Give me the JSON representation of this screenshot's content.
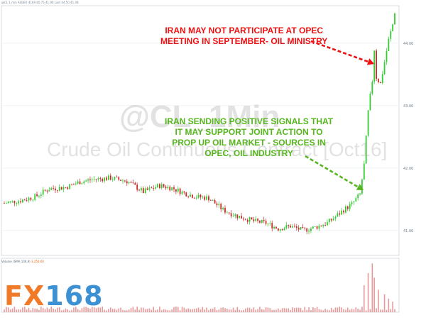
{
  "header": {
    "text": "@CL 1 min ASDEX 4169 40.75 41.90 Last 44.50 41.48"
  },
  "watermark": {
    "symbol": "@CL_1Min",
    "name": "Crude Oil Continuous Contract [Oct16]"
  },
  "annotations": {
    "red_line1": "IRAN MAY NOT PARTICIPATE AT OPEC",
    "red_line2": "MEETING IN SEPTEMBER- OIL MINISTRY",
    "green_line1": "IRAN SENDING POSITIVE SIGNALS THAT",
    "green_line2": "IT MAY SUPPORT JOINT ACTION TO",
    "green_line3": "PROP UP OIL MARKET - SOURCES IN",
    "green_line4": "OPEC, OIL INDUSTRY",
    "red_color": "#ee1111",
    "green_color": "#55b61d"
  },
  "volume_label": {
    "prefix": "Volume (SMA 100,9) ",
    "value": "3,250.00"
  },
  "logo": {
    "fx": "FX",
    "num": "168"
  },
  "colors": {
    "up": "#33cc33",
    "down": "#cc2a2a",
    "volume": "#e89a9a"
  },
  "chart_data": {
    "type": "candlestick",
    "title": "@CL_1Min",
    "subtitle": "Crude Oil Continuous Contract [Oct16]",
    "ylim": [
      40.6,
      44.6
    ],
    "y_ticks": [
      41.0,
      42.0,
      43.0,
      44.0
    ],
    "price_anchors": [
      [
        0,
        41.44
      ],
      [
        8,
        41.48
      ],
      [
        15,
        41.54
      ],
      [
        22,
        41.67
      ],
      [
        30,
        41.69
      ],
      [
        37,
        41.78
      ],
      [
        44,
        41.82
      ],
      [
        52,
        41.84
      ],
      [
        60,
        41.79
      ],
      [
        68,
        41.62
      ],
      [
        76,
        41.72
      ],
      [
        82,
        41.68
      ],
      [
        88,
        41.6
      ],
      [
        94,
        41.54
      ],
      [
        100,
        41.52
      ],
      [
        107,
        41.33
      ],
      [
        114,
        41.23
      ],
      [
        122,
        41.15
      ],
      [
        128,
        41.12
      ],
      [
        134,
        41.03
      ],
      [
        140,
        41.07
      ],
      [
        146,
        41.0
      ],
      [
        152,
        41.05
      ],
      [
        158,
        41.12
      ],
      [
        162,
        41.22
      ],
      [
        166,
        41.33
      ],
      [
        170,
        41.42
      ],
      [
        174,
        41.58
      ],
      [
        176,
        42.05
      ],
      [
        178,
        42.9
      ],
      [
        180,
        43.4
      ],
      [
        181,
        43.9
      ],
      [
        182,
        43.45
      ],
      [
        184,
        43.35
      ],
      [
        186,
        43.7
      ],
      [
        188,
        44.05
      ],
      [
        190,
        44.3
      ],
      [
        191,
        44.5
      ]
    ],
    "volume_spikes": [
      [
        176,
        1800
      ],
      [
        178,
        2600
      ],
      [
        180,
        3250
      ],
      [
        181,
        2300
      ],
      [
        183,
        1500
      ],
      [
        186,
        1200
      ],
      [
        188,
        900
      ],
      [
        190,
        700
      ]
    ],
    "volume_ylim": [
      0,
      3400
    ]
  }
}
